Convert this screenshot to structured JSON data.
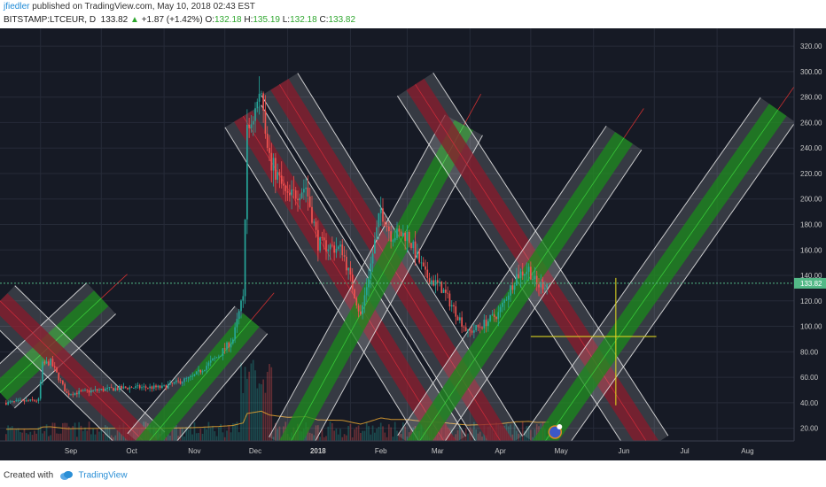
{
  "header": {
    "author": "jfiedler",
    "published_text": " published on TradingView.com, May 10, 2018 02:43 EST",
    "symbol": "BITSTAMP:LTCEUR, D",
    "last": "133.82",
    "change_arrow": "▲",
    "change": "+1.87 (+1.42%)",
    "o_label": "O:",
    "o_value": "132.18",
    "h_label": "H:",
    "h_value": "135.19",
    "l_label": "L:",
    "l_value": "132.18",
    "c_label": "C:",
    "c_value": "133.82"
  },
  "footer": {
    "created_with": "Created with",
    "brand": "TradingView"
  },
  "colors": {
    "background": "#161a25",
    "grid": "#262b38",
    "candle_up": "#26a69a",
    "candle_down": "#ef5350",
    "ascending_channel": "#1a8a1a",
    "descending_channel": "#8a1a2a",
    "channel_border": "#e8e8e8",
    "price_line": "#53b987",
    "crosshair": "#d8d020"
  },
  "chart_data": {
    "type": "candlestick",
    "symbol": "BITSTAMP:LTCEUR",
    "interval": "D",
    "y_axis_ticks": [
      20,
      40,
      60,
      80,
      100,
      120,
      140,
      160,
      180,
      200,
      220,
      240,
      260,
      280,
      300,
      320
    ],
    "y_tick_labels": [
      "20.00",
      "40.00",
      "60.00",
      "80.00",
      "100.00",
      "120.00",
      "140.00",
      "160.00",
      "180.00",
      "200.00",
      "220.00",
      "240.00",
      "260.00",
      "280.00",
      "300.00",
      "320.00"
    ],
    "ylim": [
      10,
      334
    ],
    "x_labels": [
      "Sep",
      "Oct",
      "Nov",
      "Dec",
      "2018",
      "Feb",
      "Mar",
      "Apr",
      "May",
      "Jun",
      "Jul",
      "Aug"
    ],
    "current_price": 133.82,
    "current_price_label": "133.82",
    "price_anchors": [
      {
        "date": "2017-08-15",
        "close": 40
      },
      {
        "date": "2017-08-31",
        "close": 42
      },
      {
        "date": "2017-09-02",
        "close": 70
      },
      {
        "date": "2017-09-06",
        "close": 72
      },
      {
        "date": "2017-09-14",
        "close": 47
      },
      {
        "date": "2017-09-30",
        "close": 50
      },
      {
        "date": "2017-10-15",
        "close": 52
      },
      {
        "date": "2017-10-31",
        "close": 52
      },
      {
        "date": "2017-11-15",
        "close": 60
      },
      {
        "date": "2017-11-28",
        "close": 77
      },
      {
        "date": "2017-12-05",
        "close": 90
      },
      {
        "date": "2017-12-10",
        "close": 124
      },
      {
        "date": "2017-12-12",
        "close": 252
      },
      {
        "date": "2017-12-15",
        "close": 265
      },
      {
        "date": "2017-12-19",
        "close": 285
      },
      {
        "date": "2017-12-23",
        "close": 232
      },
      {
        "date": "2018-01-01",
        "close": 200
      },
      {
        "date": "2018-01-10",
        "close": 210
      },
      {
        "date": "2018-01-16",
        "close": 165
      },
      {
        "date": "2018-01-28",
        "close": 160
      },
      {
        "date": "2018-02-06",
        "close": 108
      },
      {
        "date": "2018-02-10",
        "close": 140
      },
      {
        "date": "2018-02-16",
        "close": 192
      },
      {
        "date": "2018-02-21",
        "close": 172
      },
      {
        "date": "2018-03-01",
        "close": 172
      },
      {
        "date": "2018-03-10",
        "close": 140
      },
      {
        "date": "2018-03-18",
        "close": 130
      },
      {
        "date": "2018-03-31",
        "close": 95
      },
      {
        "date": "2018-04-06",
        "close": 100
      },
      {
        "date": "2018-04-15",
        "close": 110
      },
      {
        "date": "2018-04-24",
        "close": 140
      },
      {
        "date": "2018-04-30",
        "close": 145
      },
      {
        "date": "2018-05-04",
        "close": 132
      },
      {
        "date": "2018-05-10",
        "close": 133.82
      }
    ],
    "channels": [
      {
        "direction": "ascending",
        "start": {
          "date": "2017-08-12",
          "price": 48
        },
        "end": {
          "date": "2017-10-01",
          "price": 122
        }
      },
      {
        "direction": "descending",
        "start": {
          "date": "2017-08-12",
          "price": 120
        },
        "end": {
          "date": "2017-10-25",
          "price": 5
        }
      },
      {
        "direction": "ascending",
        "start": {
          "date": "2017-10-22",
          "price": 5
        },
        "end": {
          "date": "2017-12-14",
          "price": 105
        }
      },
      {
        "direction": "descending",
        "start": {
          "date": "2017-12-10",
          "price": 265
        },
        "end": {
          "date": "2018-03-21",
          "price": 5
        }
      },
      {
        "direction": "descending",
        "start": {
          "date": "2017-12-28",
          "price": 290
        },
        "end": {
          "date": "2018-04-18",
          "price": 5
        }
      },
      {
        "direction": "ascending",
        "start": {
          "date": "2018-01-01",
          "price": 5
        },
        "end": {
          "date": "2018-03-29",
          "price": 258
        }
      },
      {
        "direction": "descending",
        "start": {
          "date": "2018-03-05",
          "price": 290
        },
        "end": {
          "date": "2018-06-29",
          "price": 5
        }
      },
      {
        "direction": "ascending",
        "start": {
          "date": "2018-03-05",
          "price": 5
        },
        "end": {
          "date": "2018-06-16",
          "price": 248
        }
      },
      {
        "direction": "ascending",
        "start": {
          "date": "2018-05-06",
          "price": 5
        },
        "end": {
          "date": "2018-08-31",
          "price": 270
        }
      }
    ],
    "crosshair": {
      "date": "2018-06-12",
      "price": 92,
      "from_date": "2018-05-01",
      "to_date": "2018-07-02",
      "price_low": 38,
      "price_high": 138
    }
  }
}
